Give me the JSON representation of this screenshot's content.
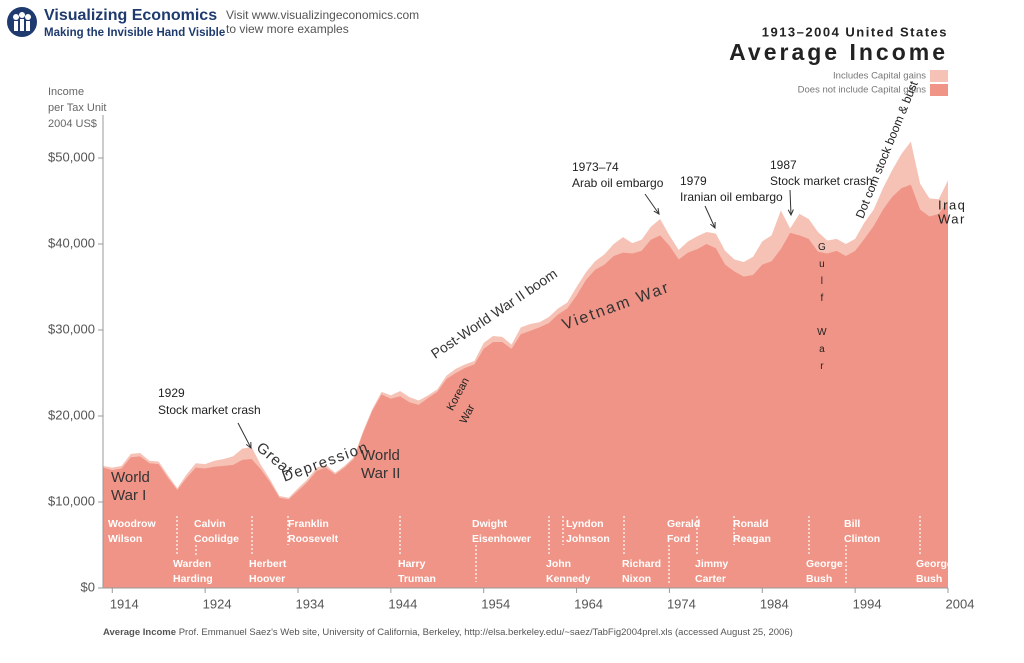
{
  "header": {
    "logo_title": "Visualizing Economics",
    "logo_subtitle": "Making the Invisible Hand Visible",
    "visit_lines": [
      "Visit www.visualizingeconomics.com",
      "to view more examples"
    ]
  },
  "chart_data": {
    "type": "area",
    "subtitle": "1913–2004 United States",
    "title": "Average Income",
    "y_label": [
      "Income",
      "per Tax Unit",
      "2004 US$"
    ],
    "x": [
      1913,
      1914,
      1915,
      1916,
      1917,
      1918,
      1919,
      1920,
      1921,
      1922,
      1923,
      1924,
      1925,
      1926,
      1927,
      1928,
      1929,
      1930,
      1931,
      1932,
      1933,
      1934,
      1935,
      1936,
      1937,
      1938,
      1939,
      1940,
      1941,
      1942,
      1943,
      1944,
      1945,
      1946,
      1947,
      1948,
      1949,
      1950,
      1951,
      1952,
      1953,
      1954,
      1955,
      1956,
      1957,
      1958,
      1959,
      1960,
      1961,
      1962,
      1963,
      1964,
      1965,
      1966,
      1967,
      1968,
      1969,
      1970,
      1971,
      1972,
      1973,
      1974,
      1975,
      1976,
      1977,
      1978,
      1979,
      1980,
      1981,
      1982,
      1983,
      1984,
      1985,
      1986,
      1987,
      1988,
      1989,
      1990,
      1991,
      1992,
      1993,
      1994,
      1995,
      1996,
      1997,
      1998,
      1999,
      2000,
      2001,
      2002,
      2003,
      2004
    ],
    "series": [
      {
        "name": "Includes Capital gains",
        "color": "#f6c2b6",
        "values": [
          14200,
          14000,
          14200,
          15600,
          15700,
          14800,
          14700,
          13100,
          11600,
          13200,
          14500,
          14400,
          14800,
          15000,
          15300,
          16200,
          16400,
          14300,
          12600,
          10700,
          10500,
          11600,
          12600,
          14000,
          14300,
          13400,
          14200,
          15200,
          18200,
          20800,
          22800,
          22400,
          22900,
          22200,
          21800,
          22400,
          23100,
          24700,
          25500,
          26000,
          26400,
          28500,
          29300,
          29200,
          28300,
          30300,
          30700,
          30900,
          31500,
          32500,
          33200,
          35000,
          36700,
          38000,
          38800,
          40000,
          40800,
          40100,
          40500,
          42000,
          42900,
          41000,
          39300,
          40300,
          40900,
          41400,
          41200,
          39200,
          38200,
          37900,
          38500,
          40300,
          41000,
          43900,
          41800,
          43500,
          42900,
          41400,
          40400,
          40600,
          40000,
          40600,
          42500,
          44000,
          46500,
          48600,
          50500,
          51900,
          47000,
          45300,
          45200,
          47400
        ]
      },
      {
        "name": "Does not include Capital gains",
        "color": "#ef9486",
        "values": [
          14000,
          13700,
          13900,
          15200,
          15300,
          14500,
          14400,
          12800,
          11400,
          12800,
          14000,
          13900,
          14100,
          14200,
          14300,
          14900,
          15000,
          13800,
          12300,
          10500,
          10300,
          11300,
          12300,
          13600,
          14000,
          13200,
          14000,
          15000,
          18000,
          20600,
          22500,
          22000,
          22300,
          21600,
          21300,
          22100,
          22800,
          24300,
          25000,
          25600,
          26000,
          27800,
          28600,
          28600,
          27800,
          29500,
          29900,
          30300,
          30800,
          31800,
          32500,
          34000,
          35800,
          37000,
          37600,
          38600,
          39000,
          38900,
          39200,
          40500,
          41000,
          39800,
          38200,
          39000,
          39400,
          40000,
          39500,
          37600,
          36800,
          36200,
          36400,
          37600,
          38000,
          39400,
          41300,
          41000,
          40600,
          39100,
          38900,
          39200,
          38600,
          39200,
          40600,
          42100,
          44000,
          45500,
          46500,
          46900,
          44000,
          43200,
          43500,
          45000
        ]
      }
    ],
    "xlim": [
      1913,
      2004
    ],
    "ylim": [
      0,
      55000
    ],
    "xticks": [
      1914,
      1924,
      1934,
      1944,
      1954,
      1964,
      1974,
      1984,
      1994,
      2004
    ],
    "yticks": [
      {
        "value": 0,
        "label": "$0"
      },
      {
        "value": 10000,
        "label": "$10,000"
      },
      {
        "value": 20000,
        "label": "$20,000"
      },
      {
        "value": 30000,
        "label": "$30,000"
      },
      {
        "value": 40000,
        "label": "$40,000"
      },
      {
        "value": 50000,
        "label": "$50,000"
      }
    ],
    "legend": "top-right",
    "annotations": [
      {
        "lines": [
          "World",
          "War I"
        ]
      },
      {
        "lines": [
          "World",
          "War II"
        ]
      },
      {
        "lines": [
          "Great"
        ]
      },
      {
        "lines": [
          "Depression"
        ]
      },
      {
        "lines": [
          "Post-World War II boom"
        ]
      },
      {
        "lines": [
          "Korean",
          "War"
        ]
      },
      {
        "lines": [
          "Vietnam War"
        ]
      },
      {
        "lines": [
          "Gulf War"
        ]
      },
      {
        "lines": [
          "Dot com stock boom & bust"
        ]
      },
      {
        "lines": [
          "Iraq",
          "War"
        ]
      },
      {
        "lines": [
          "1929",
          "Stock market crash"
        ]
      },
      {
        "lines": [
          "1973–74",
          "Arab oil embargo"
        ]
      },
      {
        "lines": [
          "1979",
          "Iranian oil embargo"
        ]
      },
      {
        "lines": [
          "1987",
          "Stock market crash"
        ]
      }
    ],
    "presidents": [
      [
        "Woodrow",
        "Wilson"
      ],
      [
        "Warden",
        "Harding"
      ],
      [
        "Calvin",
        "Coolidge"
      ],
      [
        "Herbert",
        "Hoover"
      ],
      [
        "Franklin",
        "Roosevelt"
      ],
      [
        "Harry",
        "Truman"
      ],
      [
        "Dwight",
        "Eisenhower"
      ],
      [
        "John",
        "Kennedy"
      ],
      [
        "Lyndon",
        "Johnson"
      ],
      [
        "Richard",
        "Nixon"
      ],
      [
        "Gerald",
        "Ford"
      ],
      [
        "Jimmy",
        "Carter"
      ],
      [
        "Ronald",
        "Reagan"
      ],
      [
        "George",
        "Bush"
      ],
      [
        "Bill",
        "Clinton"
      ],
      [
        "George W",
        "Bush"
      ]
    ],
    "source": {
      "label": "Average Income",
      "text": "Prof. Emmanuel Saez's Web site, University of California, Berkeley, http://elsa.berkeley.edu/~saez/TabFig2004prel.xls (accessed August 25, 2006)"
    }
  }
}
